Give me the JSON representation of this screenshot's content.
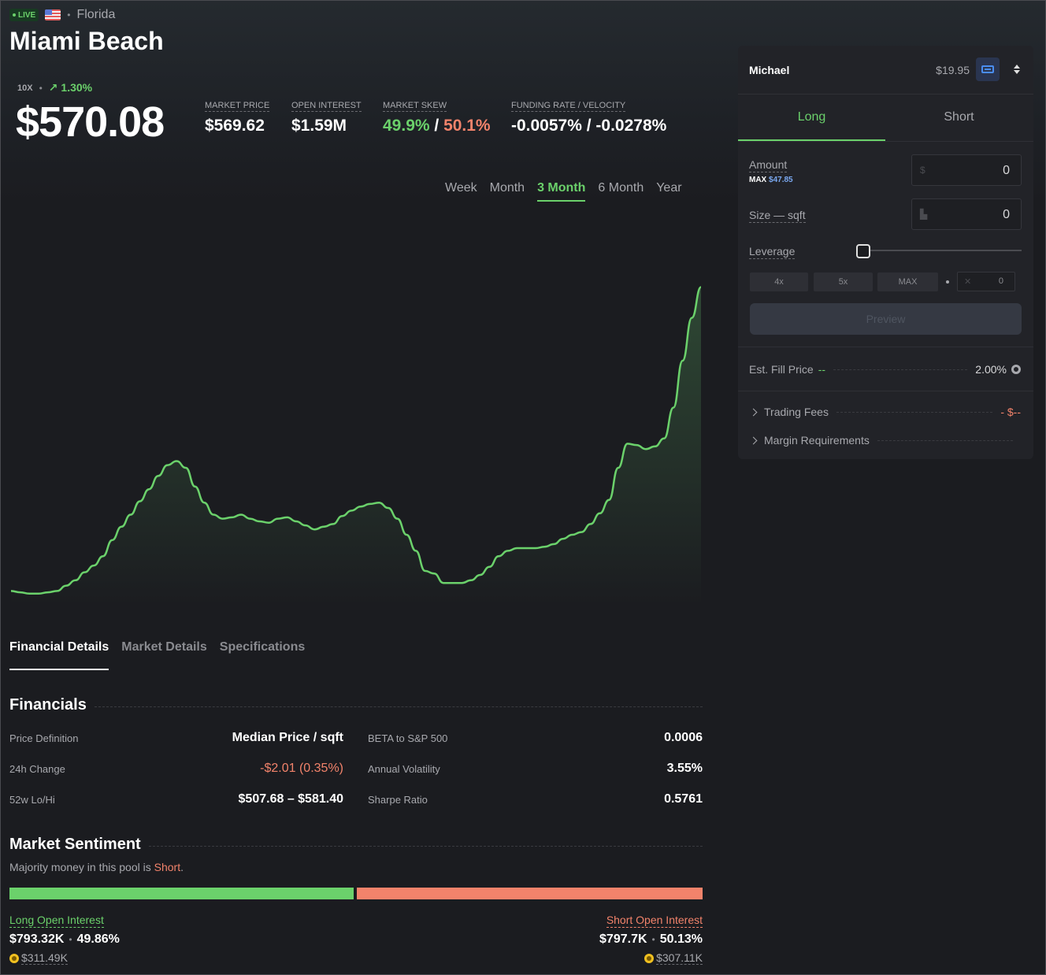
{
  "header": {
    "live_label": "LIVE",
    "state": "Florida",
    "city": "Miami Beach",
    "leverage": "10X",
    "change": "1.30%",
    "price": "$570.08"
  },
  "stats": [
    {
      "label": "MARKET PRICE",
      "value": "$569.62"
    },
    {
      "label": "OPEN INTEREST",
      "value": "$1.59M"
    },
    {
      "label": "MARKET SKEW",
      "value_long": "49.9%",
      "value_sep": " / ",
      "value_short": "50.1%"
    },
    {
      "label": "FUNDING RATE / VELOCITY",
      "value": "-0.0057% / -0.0278%"
    }
  ],
  "ranges": [
    "Week",
    "Month",
    "3 Month",
    "6 Month",
    "Year"
  ],
  "active_range": "3 Month",
  "chart_data": {
    "type": "area",
    "y": [
      112,
      113,
      114,
      114,
      113,
      112,
      108,
      104,
      98,
      93,
      86,
      74,
      64,
      55,
      45,
      36,
      26,
      18,
      15,
      20,
      34,
      46,
      55,
      58,
      57,
      55,
      58,
      60,
      61,
      58,
      57,
      60,
      63,
      66,
      64,
      62,
      56,
      52,
      49,
      47,
      46,
      50,
      58,
      70,
      82,
      97,
      99,
      106,
      106,
      106,
      104,
      100,
      94,
      86,
      82,
      80,
      80,
      80,
      79,
      77,
      73,
      70,
      68,
      62,
      54,
      44,
      20,
      2,
      3,
      6,
      4,
      -2,
      -25,
      -60,
      -92,
      -115
    ]
  },
  "detail_tabs": [
    "Financial Details",
    "Market Details",
    "Specifications"
  ],
  "financials": {
    "title": "Financials",
    "rows": [
      {
        "l1": "Price Definition",
        "v1": "Median Price / sqft",
        "l2": "BETA to S&P 500",
        "v2": "0.0006"
      },
      {
        "l1": "24h Change",
        "v1": "-$2.01 (0.35%)",
        "l2": "Annual Volatility",
        "v2": "3.55%"
      },
      {
        "l1": "52w Lo/Hi",
        "v1": "$507.68 – $581.40",
        "l2": "Sharpe Ratio",
        "v2": "0.5761"
      }
    ]
  },
  "sentiment": {
    "title": "Market Sentiment",
    "note_prefix": "Majority money in this pool is ",
    "note_side": "Short",
    "note_suffix": ".",
    "long_share": 0.4986,
    "long_label": "Long Open Interest",
    "long_value": "$793.32K",
    "long_pct": "49.86%",
    "long_sub": "$311.49K",
    "short_label": "Short Open Interest",
    "short_value": "$797.7K",
    "short_pct": "50.13%",
    "short_sub": "$307.11K"
  },
  "panel": {
    "user": "Michael",
    "balance": "$19.95",
    "tab_long": "Long",
    "tab_short": "Short",
    "amount_label": "Amount",
    "max_prefix": "MAX",
    "max_value": "$47.85",
    "amount_value": "0",
    "amount_prefix": "$",
    "size_label": "Size — sqft",
    "size_value": "0",
    "leverage_label": "Leverage",
    "lev_buttons": [
      "4x",
      "5x",
      "MAX"
    ],
    "lev_value": "0",
    "lev_prefix": "✕",
    "preview": "Preview",
    "fill_label": "Est. Fill Price",
    "fill_value": "--",
    "slippage": "2.00%",
    "fees_label": "Trading Fees",
    "fees_value": "- $--",
    "margin_label": "Margin Requirements"
  }
}
